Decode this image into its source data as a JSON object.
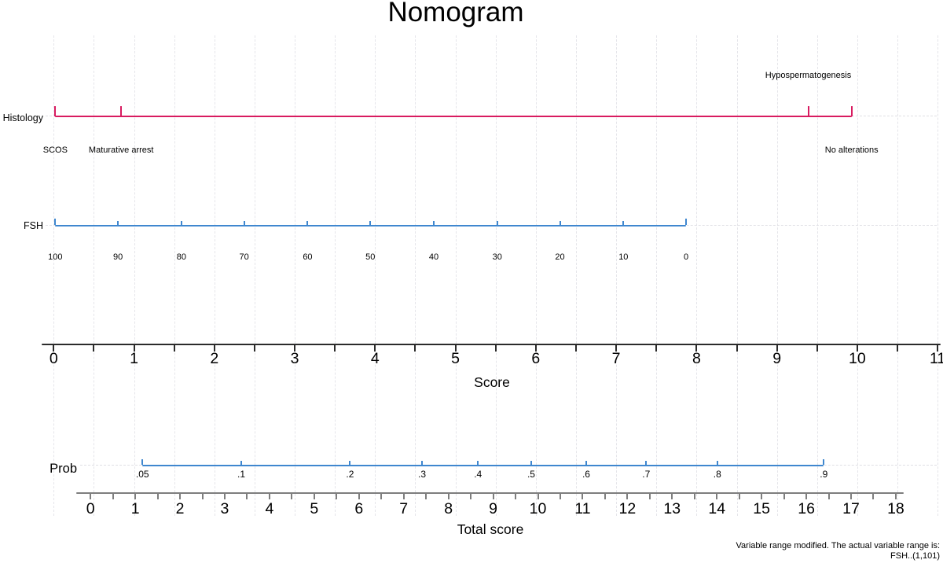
{
  "title": "Nomogram",
  "row_labels": {
    "histology": "Histology",
    "fsh": "FSH",
    "prob": "Prob"
  },
  "axis_titles": {
    "score": "Score",
    "total_score": "Total score"
  },
  "footnote": {
    "line1": "Variable range modified. The actual variable range is:",
    "line2": "FSH..(1,101)"
  },
  "colors": {
    "histology_line": "#d81b60",
    "fsh_line": "#3f87cf",
    "prob_line": "#3f87cf",
    "score_axis": "#2b2b2b",
    "total_axis": "#7e7e7e",
    "gridline": "#e5e5ea",
    "text": "#000000"
  },
  "chart_data": {
    "type": "line",
    "subtype": "nomogram",
    "title": "Nomogram",
    "grid": "vertical dashed at every 0.5 Score units",
    "axes": [
      {
        "name": "Histology",
        "scale": "Score points (0-11)",
        "categories": [
          {
            "label": "SCOS",
            "score": 0.02,
            "label_side": "below"
          },
          {
            "label": "Maturative arrest",
            "score": 0.84,
            "label_side": "below"
          },
          {
            "label": "Hypospermatogenesis",
            "score": 9.39,
            "label_side": "above"
          },
          {
            "label": "No alterations",
            "score": 9.93,
            "label_side": "below"
          }
        ]
      },
      {
        "name": "FSH",
        "scale": "Score points (0-11)",
        "ticks": [
          {
            "value": "100",
            "score": 0.02
          },
          {
            "value": "90",
            "score": 0.8
          },
          {
            "value": "80",
            "score": 1.59
          },
          {
            "value": "70",
            "score": 2.37
          },
          {
            "value": "60",
            "score": 3.16
          },
          {
            "value": "50",
            "score": 3.94
          },
          {
            "value": "40",
            "score": 4.73
          },
          {
            "value": "30",
            "score": 5.52
          },
          {
            "value": "20",
            "score": 6.3
          },
          {
            "value": "10",
            "score": 7.09
          },
          {
            "value": "0",
            "score": 7.87
          }
        ]
      },
      {
        "name": "Score",
        "range": [
          0,
          11
        ],
        "tick_step": 1,
        "minor_tick_step": 0.5,
        "tick_labels": [
          "0",
          "1",
          "2",
          "3",
          "4",
          "5",
          "6",
          "7",
          "8",
          "9",
          "10",
          "11"
        ]
      },
      {
        "name": "Prob",
        "scale": "Total score (0-18)",
        "ticks": [
          {
            "value": ".05",
            "total": 1.16
          },
          {
            "value": ".1",
            "total": 3.37
          },
          {
            "value": ".2",
            "total": 5.8
          },
          {
            "value": ".3",
            "total": 7.41
          },
          {
            "value": ".4",
            "total": 8.66
          },
          {
            "value": ".5",
            "total": 9.85
          },
          {
            "value": ".6",
            "total": 11.08
          },
          {
            "value": ".7",
            "total": 12.42
          },
          {
            "value": ".8",
            "total": 14.01
          },
          {
            "value": ".9",
            "total": 16.39
          }
        ]
      },
      {
        "name": "Total score",
        "range": [
          0,
          18
        ],
        "tick_step": 1,
        "minor_tick_step": 0.5,
        "tick_labels": [
          "0",
          "1",
          "2",
          "3",
          "4",
          "5",
          "6",
          "7",
          "8",
          "9",
          "10",
          "11",
          "12",
          "13",
          "14",
          "15",
          "16",
          "17",
          "18"
        ]
      }
    ]
  }
}
